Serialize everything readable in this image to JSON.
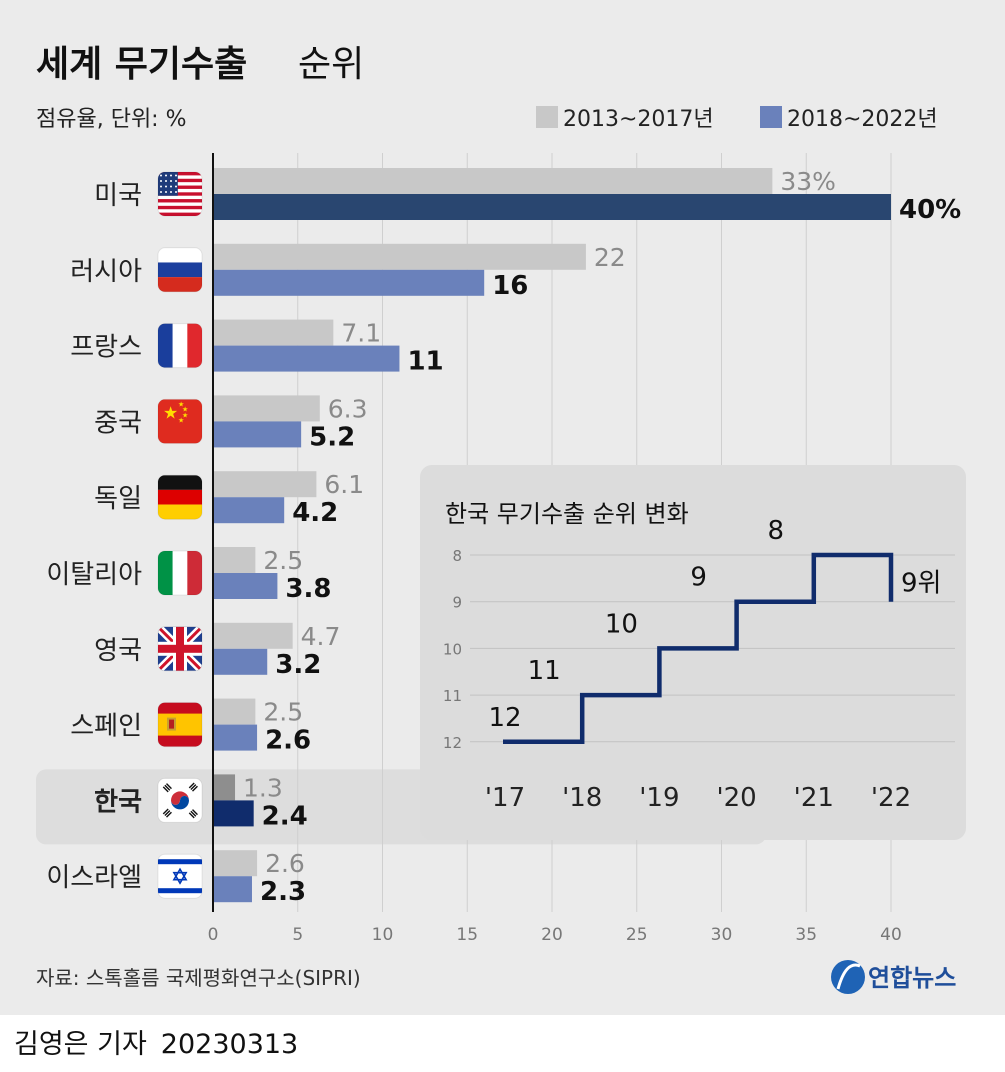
{
  "chart_data": [
    {
      "type": "bar",
      "title": "세계 무기수출",
      "title_suffix": "순위",
      "subtitle": "점유율, 단위: %",
      "categories": [
        "미국",
        "러시아",
        "프랑스",
        "중국",
        "독일",
        "이탈리아",
        "영국",
        "스페인",
        "한국",
        "이스라엘"
      ],
      "flag_icons": [
        "us-flag-icon",
        "russia-flag-icon",
        "france-flag-icon",
        "china-flag-icon",
        "germany-flag-icon",
        "italy-flag-icon",
        "uk-flag-icon",
        "spain-flag-icon",
        "korea-flag-icon",
        "israel-flag-icon"
      ],
      "highlight_category": "한국",
      "series": [
        {
          "name": "2013~2017년",
          "values": [
            33,
            22,
            7.1,
            6.3,
            6.1,
            2.5,
            4.7,
            2.5,
            1.3,
            2.6
          ],
          "labels": [
            "33%",
            "22",
            "7.1",
            "6.3",
            "6.1",
            "2.5",
            "4.7",
            "2.5",
            "1.3",
            "2.6"
          ]
        },
        {
          "name": "2018~2022년",
          "values": [
            40,
            16,
            11,
            5.2,
            4.2,
            3.8,
            3.2,
            2.6,
            2.4,
            2.3
          ],
          "labels": [
            "40%",
            "16",
            "11",
            "5.2",
            "4.2",
            "3.8",
            "3.2",
            "2.6",
            "2.4",
            "2.3"
          ]
        }
      ],
      "xlim": [
        0,
        40
      ],
      "xticks": [
        0,
        5,
        10,
        15,
        20,
        25,
        30,
        35,
        40
      ],
      "grid": true,
      "legend": "top-right"
    },
    {
      "type": "line",
      "title": "한국 무기수출 순위 변화",
      "x": [
        "'17",
        "'18",
        "'19",
        "'20",
        "'21",
        "'22"
      ],
      "y": [
        12,
        11,
        10,
        9,
        8,
        9
      ],
      "point_labels": [
        "12",
        "11",
        "10",
        "9",
        "8",
        "9위"
      ],
      "step": true,
      "ylim": [
        8,
        12
      ],
      "yticks": [
        8,
        9,
        10,
        11,
        12
      ],
      "y_inverted": true
    }
  ],
  "colors": {
    "series_old": "#c8c8c8",
    "series_new": "#6a81bb",
    "us_old": "#c8c8c8",
    "us_new": "#294670",
    "korea_old": "#8e8e8e",
    "korea_new": "#102c6c",
    "step_line": "#102c6c",
    "card_bg": "#ebebeb",
    "highlight_bg": "#dddddd",
    "inset_bg": "#dcdcdc"
  },
  "source": "자료: 스톡홀름 국제평화연구소(SIPRI)",
  "brand": "연합뉴스",
  "credit": {
    "author": "김영은 기자",
    "date": "20230313"
  }
}
